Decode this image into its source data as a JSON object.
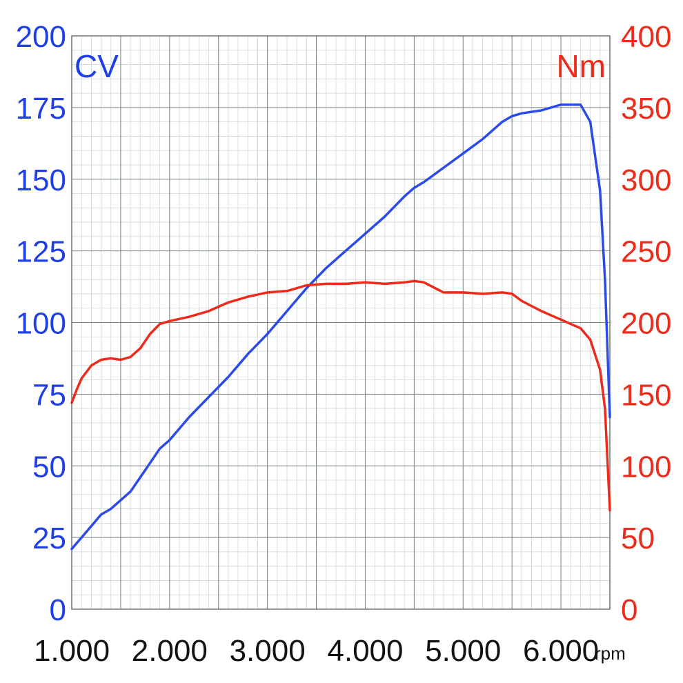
{
  "chart_data": {
    "type": "line",
    "title": "",
    "x_axis": {
      "unit": "rpm",
      "min": 1000,
      "max": 6500,
      "ticks": [
        {
          "value": 1000,
          "label": "1.000"
        },
        {
          "value": 2000,
          "label": "2.000"
        },
        {
          "value": 3000,
          "label": "3.000"
        },
        {
          "value": 4000,
          "label": "4.000"
        },
        {
          "value": 5000,
          "label": "5.000"
        },
        {
          "value": 6000,
          "label": "6.000"
        }
      ]
    },
    "y_left": {
      "unit": "CV",
      "min": 0,
      "max": 200,
      "ticks": [
        {
          "value": 0,
          "label": "0"
        },
        {
          "value": 25,
          "label": "25"
        },
        {
          "value": 50,
          "label": "50"
        },
        {
          "value": 75,
          "label": "75"
        },
        {
          "value": 100,
          "label": "100"
        },
        {
          "value": 125,
          "label": "125"
        },
        {
          "value": 150,
          "label": "150"
        },
        {
          "value": 175,
          "label": "175"
        },
        {
          "value": 200,
          "label": "200"
        }
      ]
    },
    "y_right": {
      "unit": "Nm",
      "min": 0,
      "max": 400,
      "ticks": [
        {
          "value": 0,
          "label": "0"
        },
        {
          "value": 50,
          "label": "50"
        },
        {
          "value": 100,
          "label": "100"
        },
        {
          "value": 150,
          "label": "150"
        },
        {
          "value": 200,
          "label": "200"
        },
        {
          "value": 250,
          "label": "250"
        },
        {
          "value": 300,
          "label": "300"
        },
        {
          "value": 350,
          "label": "350"
        },
        {
          "value": 400,
          "label": "400"
        }
      ]
    },
    "grid": true,
    "series": [
      {
        "unit": "CV",
        "axis": "left",
        "color": "#2a4be8",
        "x": [
          1000,
          1100,
          1200,
          1300,
          1400,
          1500,
          1600,
          1700,
          1800,
          1900,
          2000,
          2200,
          2400,
          2600,
          2800,
          3000,
          3200,
          3400,
          3600,
          3800,
          4000,
          4200,
          4400,
          4500,
          4600,
          4800,
          5000,
          5200,
          5400,
          5500,
          5600,
          5800,
          6000,
          6100,
          6200,
          6300,
          6400,
          6450,
          6500
        ],
        "y": [
          21,
          25,
          29,
          33,
          35,
          38,
          41,
          46,
          51,
          56,
          59,
          67,
          74,
          81,
          89,
          96,
          104,
          112,
          119,
          125,
          131,
          137,
          144,
          147,
          149,
          154,
          159,
          164,
          170,
          172,
          173,
          174,
          176,
          176,
          176,
          170,
          146,
          115,
          67
        ]
      },
      {
        "unit": "Nm",
        "axis": "right",
        "color": "#ee2a1a",
        "x": [
          1000,
          1050,
          1100,
          1200,
          1300,
          1400,
          1500,
          1600,
          1700,
          1800,
          1900,
          2000,
          2200,
          2400,
          2600,
          2800,
          3000,
          3200,
          3400,
          3600,
          3800,
          4000,
          4200,
          4400,
          4500,
          4600,
          4800,
          5000,
          5200,
          5400,
          5500,
          5600,
          5800,
          6000,
          6200,
          6300,
          6400,
          6450,
          6500
        ],
        "y": [
          144,
          153,
          161,
          170,
          174,
          175,
          174,
          176,
          182,
          192,
          199,
          201,
          204,
          208,
          214,
          218,
          221,
          222,
          226,
          227,
          227,
          228,
          227,
          228,
          229,
          228,
          221,
          221,
          220,
          221,
          220,
          215,
          208,
          202,
          196,
          188,
          167,
          140,
          69
        ]
      }
    ]
  }
}
